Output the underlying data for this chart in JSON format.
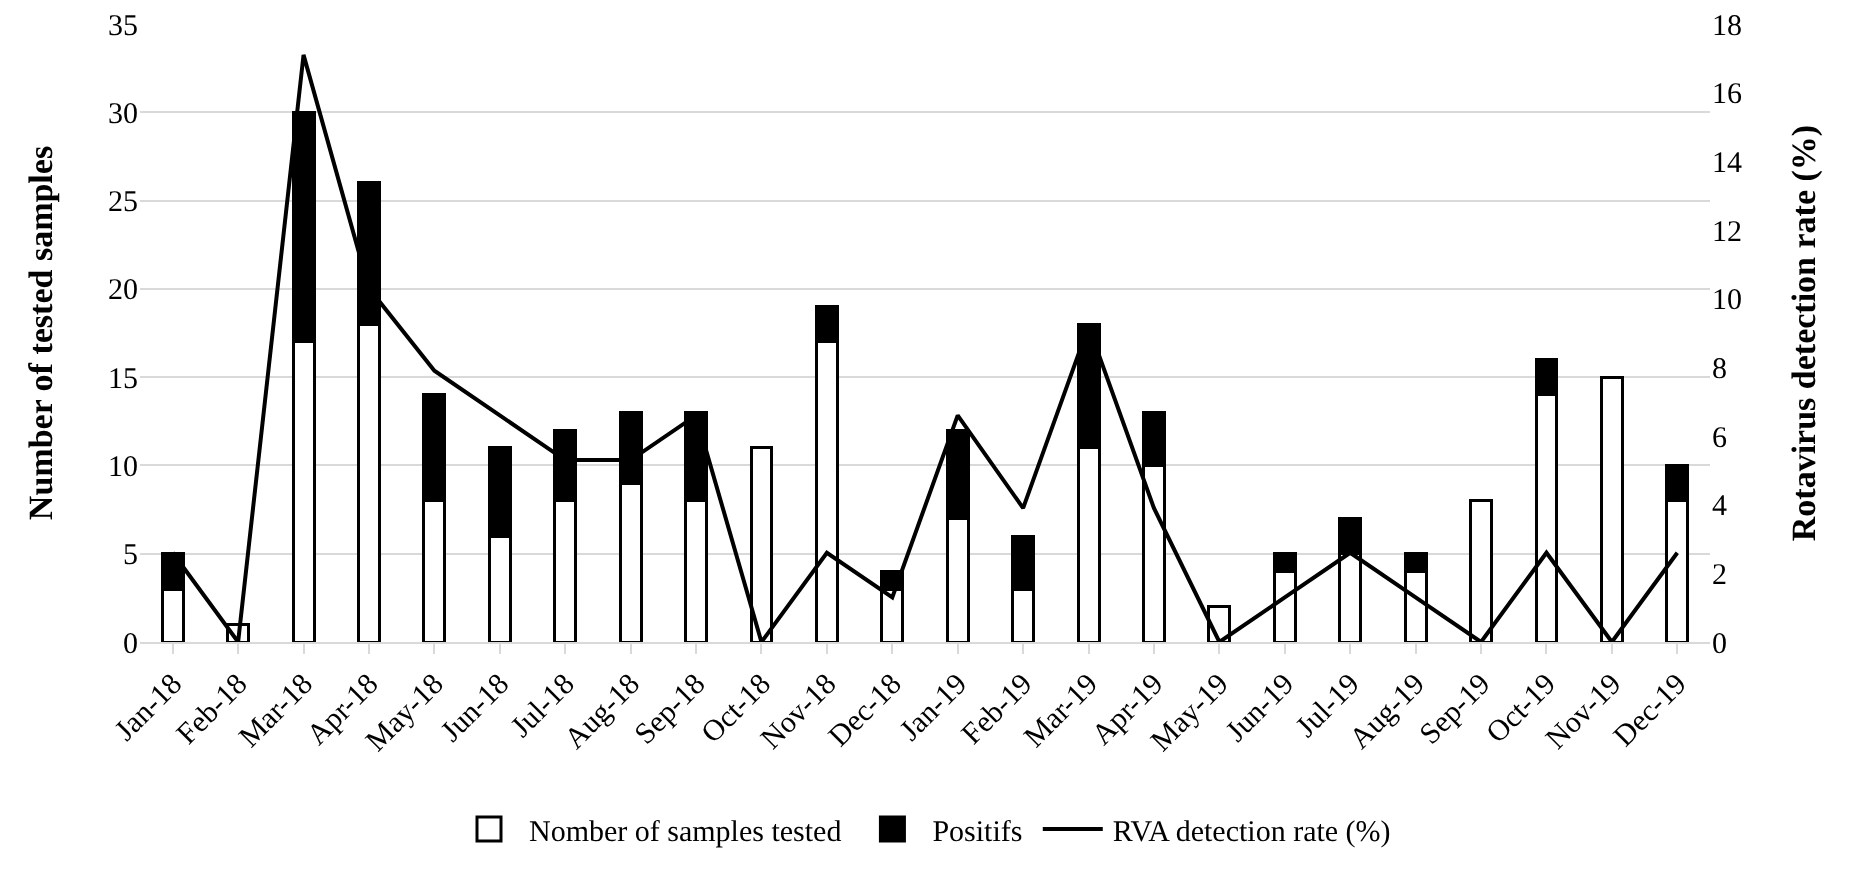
{
  "chart_data": {
    "type": "bar",
    "stacked": true,
    "ylabel": "Number of tested samples",
    "y2label": "Rotavirus detection rate (%)",
    "categories": [
      "Jan-18",
      "Feb-18",
      "Mar-18",
      "Apr-18",
      "May-18",
      "Jun-18",
      "Jul-18",
      "Aug-18",
      "Sep-18",
      "Oct-18",
      "Nov-18",
      "Dec-18",
      "Jan-19",
      "Feb-19",
      "Mar-19",
      "Apr-19",
      "May-19",
      "Jun-19",
      "Jul-19",
      "Aug-19",
      "Sep-19",
      "Oct-19",
      "Nov-19",
      "Dec-19"
    ],
    "series": [
      {
        "name": "Nomber of samples tested",
        "color": "#ffffff",
        "values": [
          3,
          1,
          17,
          18,
          8,
          6,
          8,
          9,
          8,
          11,
          17,
          3,
          7,
          3,
          11,
          10,
          2,
          4,
          5,
          4,
          8,
          14,
          15,
          8
        ]
      },
      {
        "name": "Positifs",
        "color": "#000000",
        "values": [
          2,
          0,
          13,
          8,
          6,
          5,
          4,
          4,
          5,
          0,
          2,
          1,
          5,
          3,
          7,
          3,
          0,
          1,
          2,
          1,
          0,
          2,
          0,
          2
        ]
      },
      {
        "name": "RVA detection rate (%)",
        "type": "line",
        "axis": "y2",
        "color": "#000000",
        "values": [
          2.6,
          0,
          17.1,
          10.3,
          7.9,
          6.6,
          5.3,
          5.3,
          6.6,
          0,
          2.6,
          1.3,
          6.6,
          3.9,
          9.2,
          3.9,
          0,
          1.3,
          2.6,
          1.3,
          0,
          2.6,
          0,
          2.6
        ]
      }
    ],
    "ylim": [
      0,
      35
    ],
    "yticks": [
      0,
      5,
      10,
      15,
      20,
      25,
      30,
      35
    ],
    "y2lim": [
      0,
      18
    ],
    "y2ticks": [
      0,
      2,
      4,
      6,
      8,
      10,
      12,
      14,
      16,
      18
    ],
    "grid": "y",
    "legend": "bottom",
    "marker": "none",
    "line_style": "solid"
  }
}
